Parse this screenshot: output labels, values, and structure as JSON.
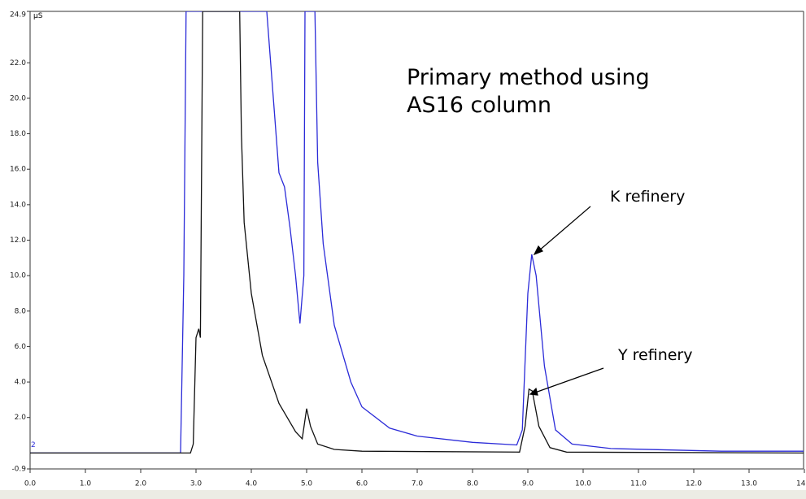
{
  "chart_data": {
    "type": "line",
    "y_label": "µS",
    "marker_label": "2",
    "annotations": [
      "Primary method using",
      "AS16 column",
      "K refinery",
      "Y refinery"
    ],
    "xlim": [
      0,
      14
    ],
    "ylim": [
      -0.9,
      24.9
    ],
    "xticks": [
      {
        "value": 0,
        "label": "0.0"
      },
      {
        "value": 1,
        "label": "1.0"
      },
      {
        "value": 2,
        "label": "2.0"
      },
      {
        "value": 3,
        "label": "3.0"
      },
      {
        "value": 4,
        "label": "4.0"
      },
      {
        "value": 5,
        "label": "5.0"
      },
      {
        "value": 6,
        "label": "6.0"
      },
      {
        "value": 7,
        "label": "7.0"
      },
      {
        "value": 8,
        "label": "8.0"
      },
      {
        "value": 9,
        "label": "9.0"
      },
      {
        "value": 10,
        "label": "10.0"
      },
      {
        "value": 11,
        "label": "11.0"
      },
      {
        "value": 12,
        "label": "12.0"
      },
      {
        "value": 13,
        "label": "13.0"
      },
      {
        "value": 14,
        "label": "14.0"
      }
    ],
    "yticks": [
      -0.9,
      {
        "value": 2,
        "label": "2.0"
      },
      {
        "value": 4,
        "label": "4.0"
      },
      {
        "value": 6,
        "label": "6.0"
      },
      {
        "value": 8,
        "label": "8.0"
      },
      {
        "value": 10,
        "label": "10.0"
      },
      {
        "value": 12,
        "label": "12.0"
      },
      {
        "value": 14,
        "label": "14.0"
      },
      {
        "value": 16,
        "label": "16.0"
      },
      {
        "value": 18,
        "label": "18.0"
      },
      {
        "value": 20,
        "label": "20.0"
      },
      {
        "value": 22,
        "label": "22.0"
      },
      24.9
    ],
    "series": [
      {
        "color": "#2b2bd8",
        "x": [
          0,
          2.72,
          2.78,
          2.82,
          4.28,
          4.5,
          4.6,
          4.7,
          4.8,
          4.88,
          4.95,
          4.97,
          5.15,
          5.2,
          5.3,
          5.5,
          5.8,
          6.0,
          6.5,
          7.0,
          8.0,
          8.8,
          8.9,
          9.0,
          9.07,
          9.15,
          9.3,
          9.5,
          9.8,
          10.5,
          12.5,
          14
        ],
        "values": [
          0,
          0,
          10,
          24.9,
          24.9,
          15.8,
          15.0,
          12.7,
          10.0,
          7.3,
          10.0,
          24.9,
          24.9,
          16.4,
          11.8,
          7.2,
          4.0,
          2.6,
          1.4,
          0.95,
          0.6,
          0.45,
          1.3,
          9.0,
          11.2,
          10.0,
          4.9,
          1.3,
          0.5,
          0.25,
          0.1,
          0.1
        ]
      },
      {
        "color": "#111111",
        "x": [
          0,
          2.9,
          2.95,
          3.0,
          3.05,
          3.08,
          3.12,
          3.79,
          3.82,
          3.87,
          4.0,
          4.2,
          4.5,
          4.8,
          4.92,
          5.0,
          5.07,
          5.2,
          5.5,
          6.0,
          8.85,
          8.95,
          9.02,
          9.08,
          9.2,
          9.4,
          9.7,
          14
        ],
        "values": [
          0,
          0,
          0.5,
          6.5,
          7.0,
          6.5,
          24.9,
          24.9,
          18,
          13,
          9,
          5.5,
          2.8,
          1.2,
          0.8,
          2.5,
          1.5,
          0.5,
          0.2,
          0.1,
          0.05,
          1.5,
          3.6,
          3.5,
          1.5,
          0.3,
          0.05,
          0
        ]
      }
    ]
  }
}
